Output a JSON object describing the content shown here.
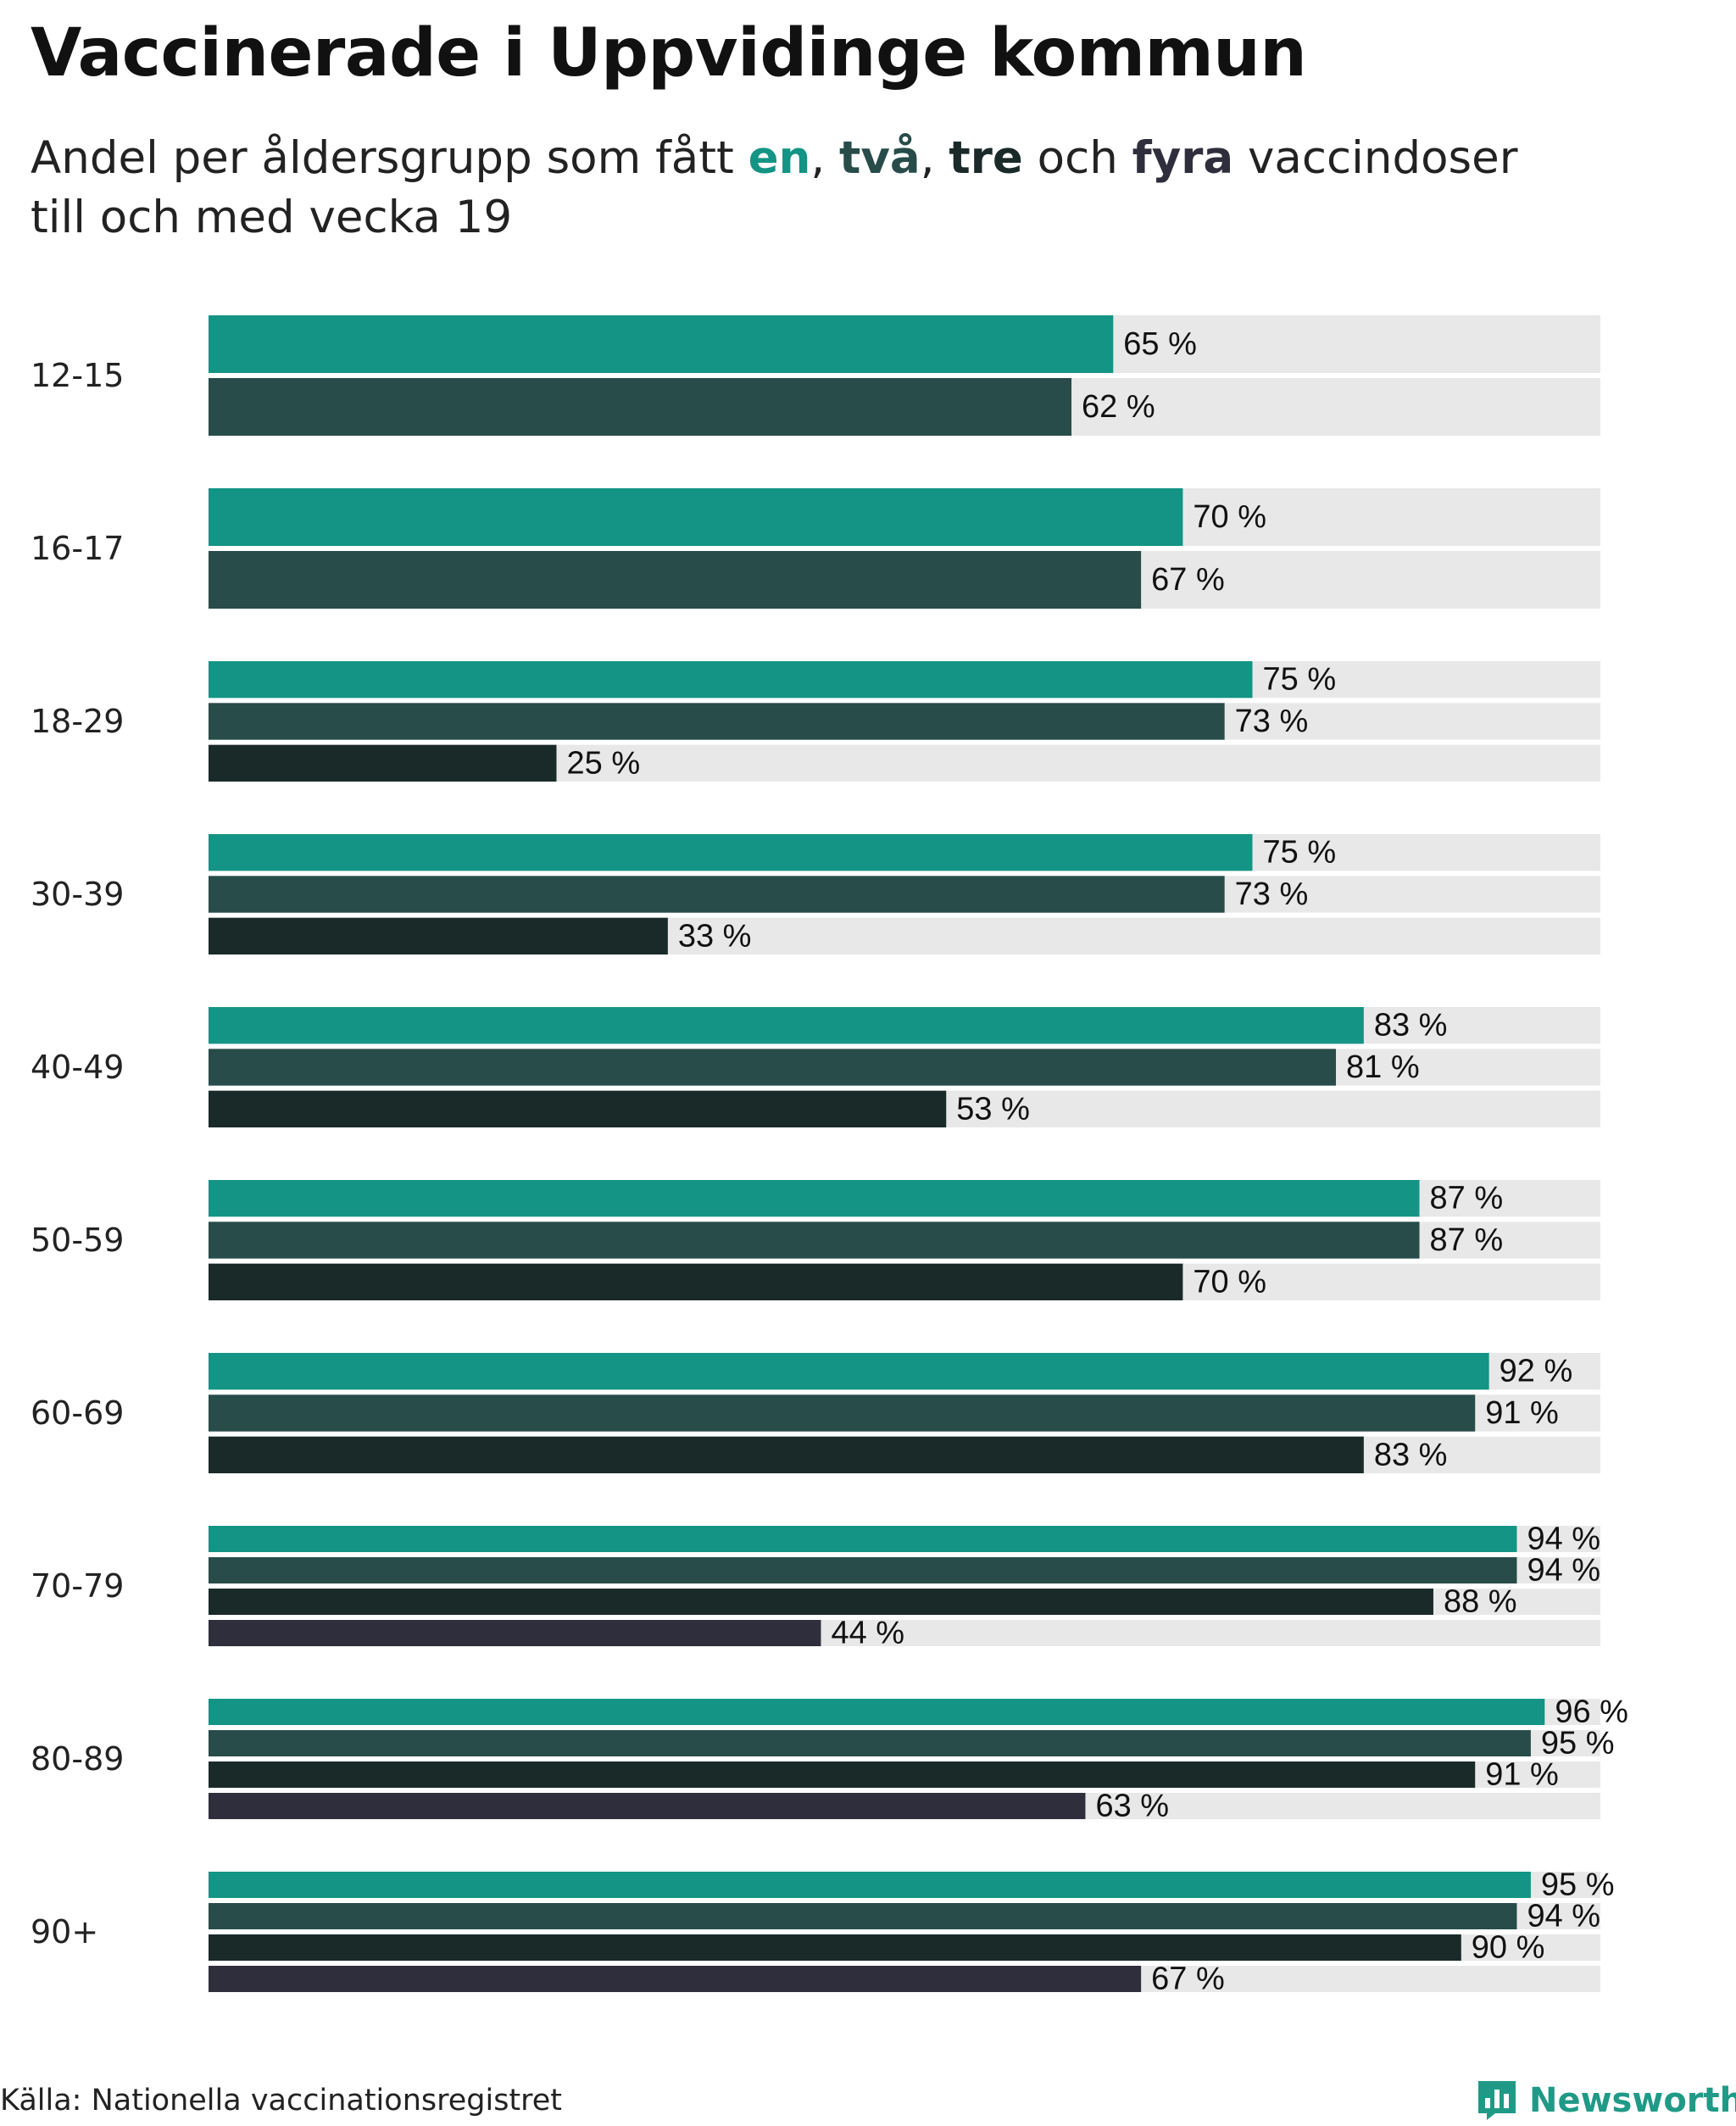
{
  "chart_data": {
    "type": "bar",
    "orientation": "horizontal",
    "title": "Vaccinerade i Uppvidinge kommun",
    "subtitle": {
      "prefix": "Andel per åldersgrupp som fått ",
      "w1": "en",
      "sep1": ", ",
      "w2": "två",
      "sep2": ", ",
      "w3": "tre",
      "sep3": " och ",
      "w4": "fyra",
      "suffix": " vaccindoser",
      "line2": "till och med vecka 19"
    },
    "xlim": [
      0,
      100
    ],
    "value_suffix": " %",
    "colors": [
      "#139484",
      "#274c49",
      "#192a29",
      "#2f2e3c"
    ],
    "track_color": "#e8e8e8",
    "categories": [
      {
        "label": "12-15",
        "values": [
          65,
          62
        ]
      },
      {
        "label": "16-17",
        "values": [
          70,
          67
        ]
      },
      {
        "label": "18-29",
        "values": [
          75,
          73,
          25
        ]
      },
      {
        "label": "30-39",
        "values": [
          75,
          73,
          33
        ]
      },
      {
        "label": "40-49",
        "values": [
          83,
          81,
          53
        ]
      },
      {
        "label": "50-59",
        "values": [
          87,
          87,
          70
        ]
      },
      {
        "label": "60-69",
        "values": [
          92,
          91,
          83
        ]
      },
      {
        "label": "70-79",
        "values": [
          94,
          94,
          88,
          44
        ]
      },
      {
        "label": "80-89",
        "values": [
          96,
          95,
          91,
          63
        ]
      },
      {
        "label": "90+",
        "values": [
          95,
          94,
          90,
          67
        ]
      }
    ]
  },
  "footer": {
    "source": "Källa: Nationella vaccinationsregistret",
    "brand": "Newsworthy",
    "brand_icon": "newsworthy-logo-icon"
  }
}
